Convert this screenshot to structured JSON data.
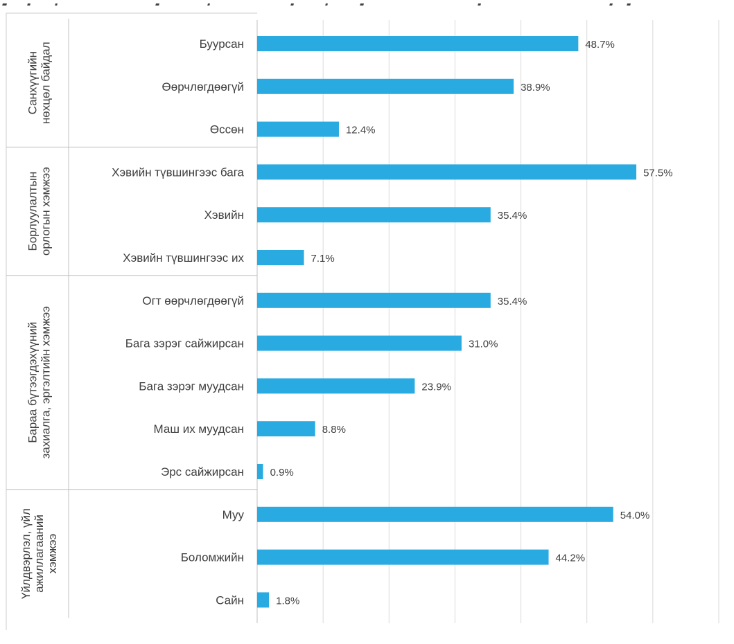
{
  "chart_data": {
    "type": "bar",
    "orientation": "horizontal",
    "xlim": [
      0,
      70
    ],
    "gridlines_every": 10,
    "grid": true,
    "legend": "none",
    "bar_color": "#29ABE2",
    "groups": [
      {
        "label": "Санхүүгийн нөхцөл байдал",
        "label_lines": [
          "Санхүүгийн",
          "нөхцөл байдал"
        ],
        "categories": [
          "Буурсан",
          "Өөрчлөгдөөгүй",
          "Өссөн"
        ],
        "values": [
          48.7,
          38.9,
          12.4
        ],
        "value_labels": [
          "48.7%",
          "38.9%",
          "12.4%"
        ]
      },
      {
        "label": "Борлуулалтын орлогын хэмжээ",
        "label_lines": [
          "Борлуулалтын",
          "орлогын хэмжээ"
        ],
        "categories": [
          "Хэвийн түвшингээс бага",
          "Хэвийн",
          "Хэвийн түвшингээс их"
        ],
        "values": [
          57.5,
          35.4,
          7.1
        ],
        "value_labels": [
          "57.5%",
          "35.4%",
          "7.1%"
        ]
      },
      {
        "label": "Бараа бүтээгдэхүүний захиалга, эргэлтийн хэмжээ",
        "label_lines": [
          "Бараа бүтээгдэхүүний",
          "захиалга, эргэлтийн хэмжээ"
        ],
        "categories": [
          "Огт өөрчлөгдөөгүй",
          "Бага зэрэг сайжирсан",
          "Бага зэрэг муудсан",
          "Маш их муудсан",
          "Эрс сайжирсан"
        ],
        "values": [
          35.4,
          31.0,
          23.9,
          8.8,
          0.9
        ],
        "value_labels": [
          "35.4%",
          "31.0%",
          "23.9%",
          "8.8%",
          "0.9%"
        ]
      },
      {
        "label": "Үйлдвэрлэл, үйл ажиллагааний хэмжээ",
        "label_lines": [
          "Үйлдвэрлэл, үйл",
          "ажиллагааний",
          "хэмжээ"
        ],
        "categories": [
          "Муу",
          "Боломжийн",
          "Сайн"
        ],
        "values": [
          54.0,
          44.2,
          1.8
        ],
        "value_labels": [
          "54.0%",
          "44.2%",
          "1.8%"
        ]
      }
    ]
  }
}
